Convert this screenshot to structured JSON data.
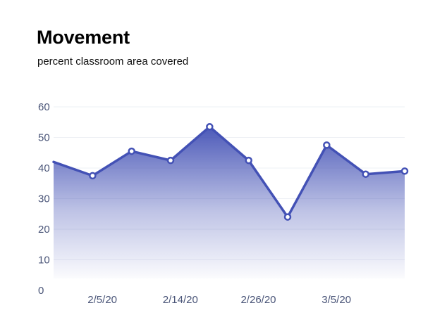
{
  "header": {
    "title": "Movement",
    "subtitle": "percent classroom area covered"
  },
  "colors": {
    "line": "#4351b5",
    "fill_top": "#4351b5",
    "fill_bottom": "#ffffff",
    "grid": "#eef0f5",
    "tick_text": "#4a5578"
  },
  "chart_data": {
    "type": "area",
    "title": "Movement",
    "subtitle": "percent classroom area covered",
    "xlabel": "",
    "ylabel": "",
    "ylim": [
      0,
      60
    ],
    "yticks": [
      0,
      10,
      20,
      30,
      40,
      50,
      60
    ],
    "grid": true,
    "series": [
      {
        "name": "Movement",
        "values": [
          42,
          37.5,
          45.5,
          42.5,
          53.5,
          42.5,
          24,
          47.5,
          38,
          39
        ],
        "markers": [
          false,
          true,
          true,
          true,
          true,
          true,
          true,
          true,
          true,
          true
        ]
      }
    ],
    "x_index_domain": [
      0,
      9
    ],
    "xtick_labels": [
      {
        "label": "2/5/20",
        "index": 1.25
      },
      {
        "label": "2/14/20",
        "index": 3.25
      },
      {
        "label": "2/26/20",
        "index": 5.25
      },
      {
        "label": "3/5/20",
        "index": 7.25
      }
    ]
  }
}
